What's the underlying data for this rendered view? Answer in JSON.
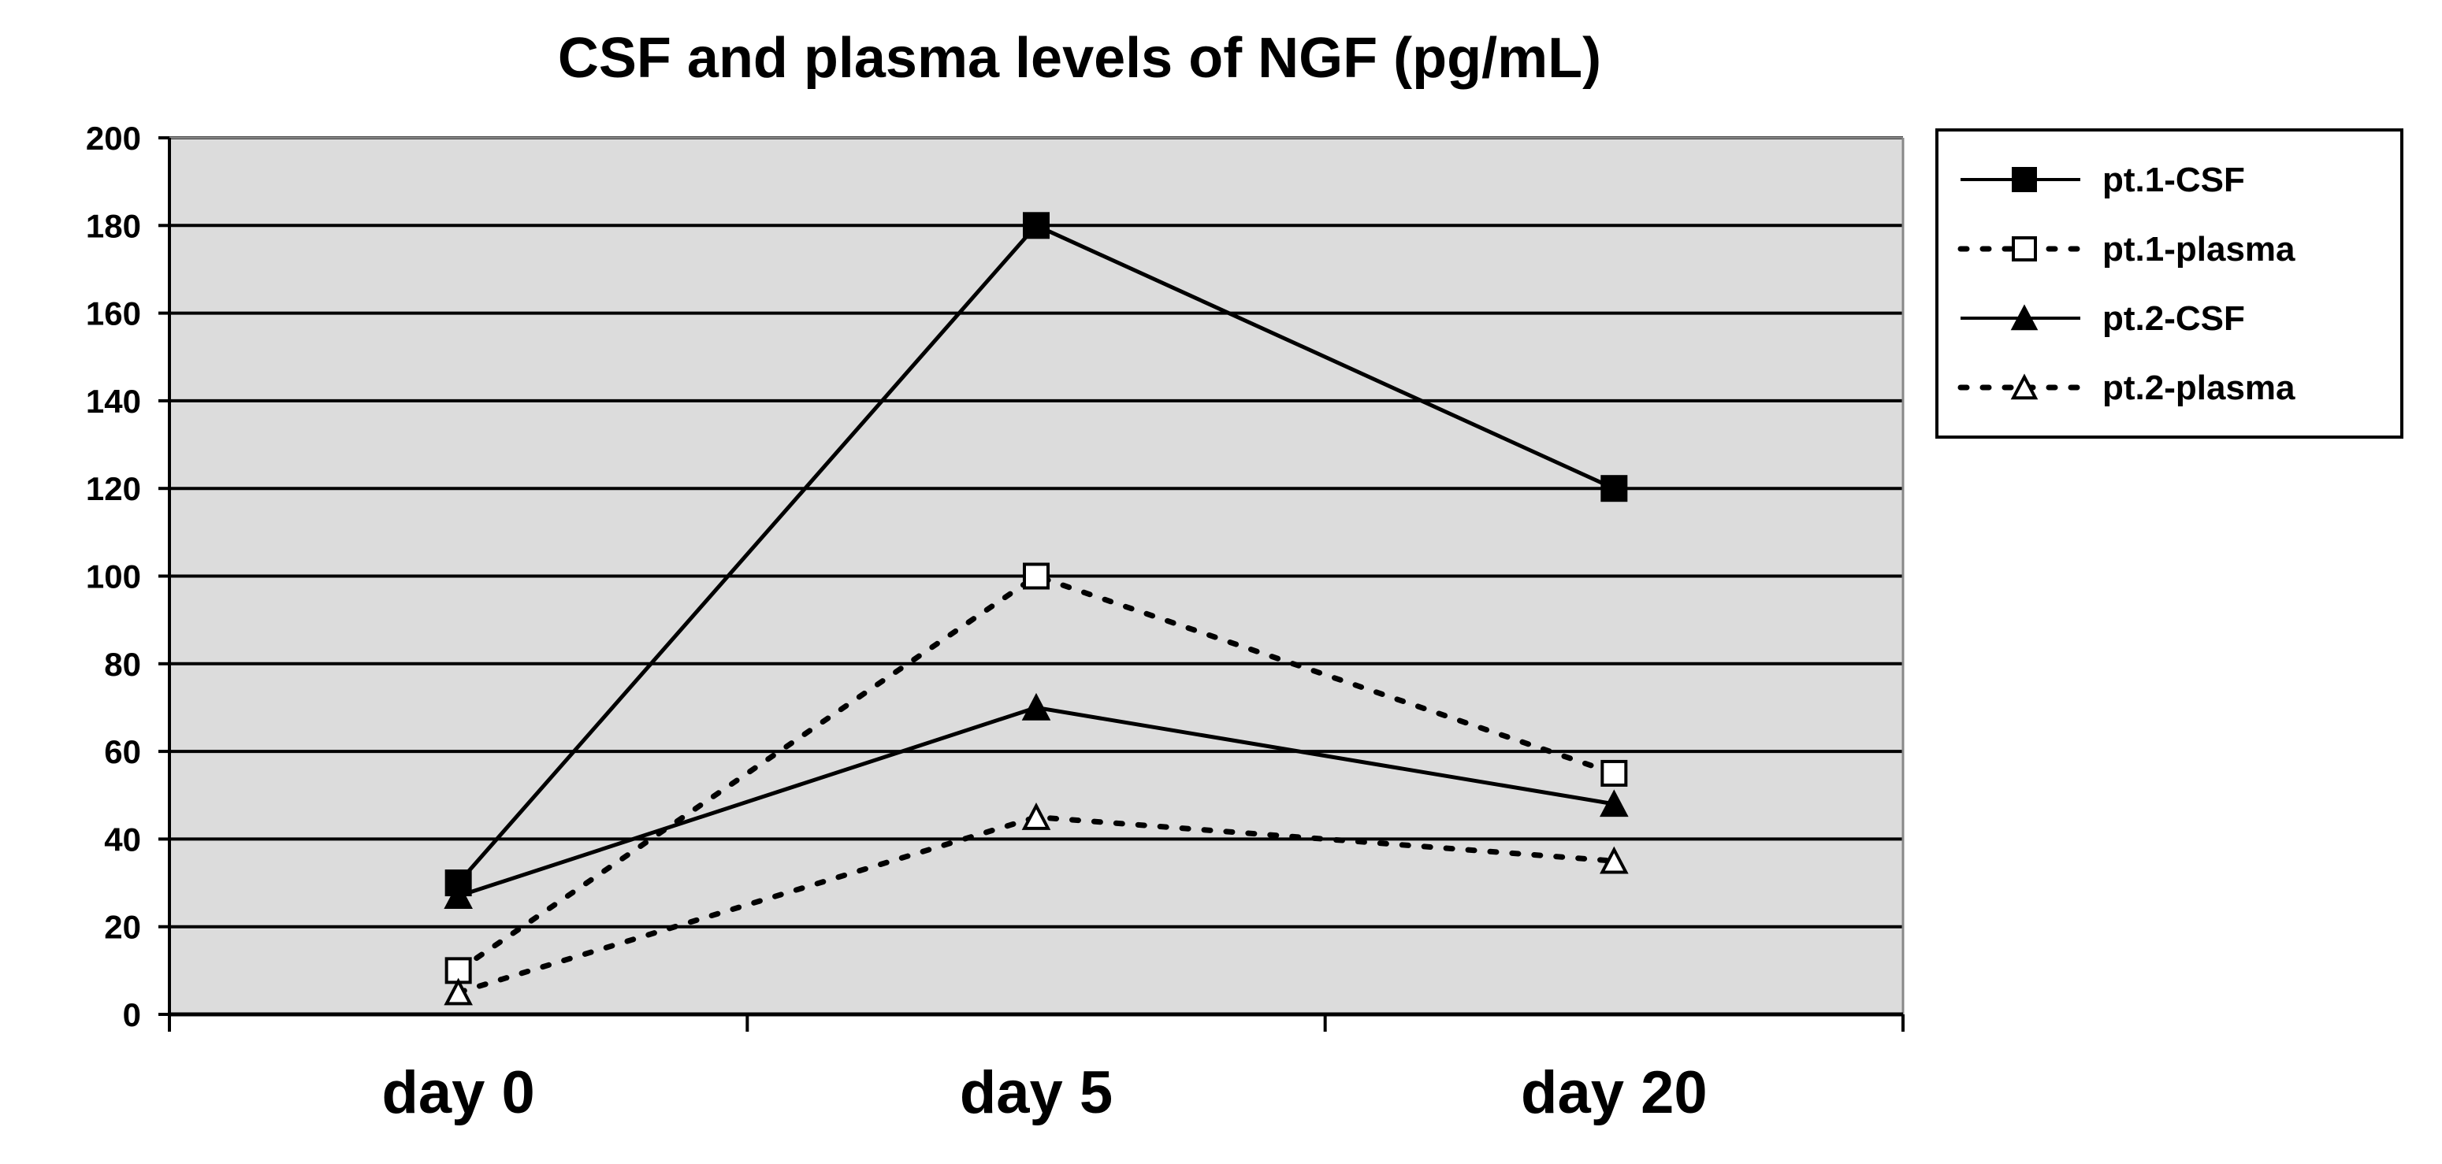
{
  "chart_data": {
    "type": "line",
    "title": "CSF and plasma levels of NGF (pg/mL)",
    "xlabel": "",
    "ylabel": "",
    "categories": [
      "day 0",
      "day 5",
      "day 20"
    ],
    "ylim": [
      0,
      200
    ],
    "yticks": [
      0,
      20,
      40,
      60,
      80,
      100,
      120,
      140,
      160,
      180,
      200
    ],
    "grid": true,
    "legend_position": "right",
    "series": [
      {
        "name": "pt.1-CSF",
        "values": [
          30,
          180,
          120
        ],
        "line": "solid",
        "marker": "square",
        "filled": true
      },
      {
        "name": "pt.1-plasma",
        "values": [
          10,
          100,
          55
        ],
        "line": "dotted",
        "marker": "square",
        "filled": false
      },
      {
        "name": "pt.2-CSF",
        "values": [
          27,
          70,
          48
        ],
        "line": "solid",
        "marker": "triangle",
        "filled": true
      },
      {
        "name": "pt.2-plasma",
        "values": [
          5,
          45,
          35
        ],
        "line": "dotted",
        "marker": "triangle",
        "filled": false
      }
    ],
    "colors": {
      "plot_background": "#dcdcdc",
      "gridline": "#000000",
      "series": "#000000"
    }
  }
}
